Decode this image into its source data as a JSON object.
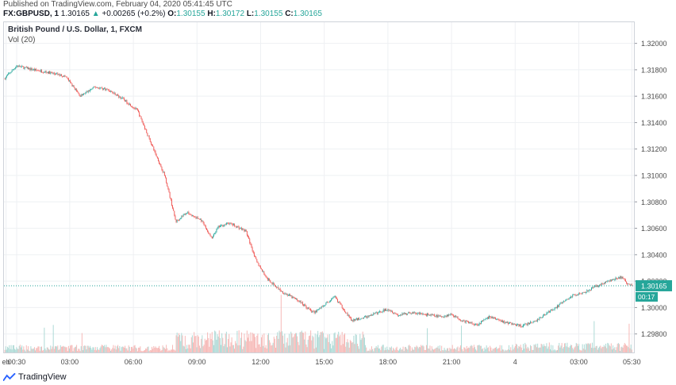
{
  "publish_line": "Published on TradingView.com, February 04, 2020 05:41:45 UTC",
  "quote": {
    "symbol": "FX:GBPUSD, 1",
    "last": "1.30165",
    "change_arrow": "▲",
    "change": "+0.00265 (+0.2%)",
    "open_label": "O:",
    "open": "1.30155",
    "high_label": "H:",
    "high": "1.30172",
    "low_label": "L:",
    "low": "1.30155",
    "close_label": "C:",
    "close": "1.30165"
  },
  "legend": {
    "title": "British Pound / U.S. Dollar, 1, FXCM",
    "volume": "Vol (20)"
  },
  "price_badge": {
    "value": "1.30165",
    "countdown": "00:17"
  },
  "footer": {
    "brand": "TradingView"
  },
  "colors": {
    "up": "#26a69a",
    "down": "#ef5350",
    "grid": "#eef0f3",
    "badge": "#26a69a"
  },
  "chart_data": {
    "type": "candlestick",
    "title": "British Pound / U.S. Dollar, 1, FXCM",
    "symbol": "FX:GBPUSD",
    "interval": "1 minute",
    "y_axis": {
      "ticks": [
        "1.32000",
        "1.31800",
        "1.31600",
        "1.31400",
        "1.31200",
        "1.31000",
        "1.30800",
        "1.30600",
        "1.30400",
        "1.30200",
        "1.30000",
        "1.29800"
      ],
      "ylim": [
        1.2966,
        1.3216
      ],
      "position": "right"
    },
    "x_axis": {
      "ticks": [
        "eb",
        "00:30",
        "03:00",
        "06:00",
        "09:00",
        "12:00",
        "15:00",
        "18:00",
        "21:00",
        "4",
        "03:00",
        "05:30"
      ],
      "tick_hours": [
        0,
        0.5,
        3,
        6,
        9,
        12,
        15,
        18,
        21,
        24,
        27,
        29.5
      ],
      "xlim": [
        -0.1,
        29.6
      ]
    },
    "price_path": {
      "hours": [
        -0.1,
        0.5,
        1.0,
        2.0,
        2.8,
        3.5,
        4.2,
        4.8,
        5.5,
        6.2,
        7.0,
        7.5,
        8.0,
        8.5,
        9.2,
        9.7,
        10.0,
        10.5,
        11.3,
        11.8,
        12.3,
        13.0,
        13.8,
        14.5,
        15.0,
        15.5,
        16.3,
        17.0,
        17.5,
        18.0,
        18.5,
        19.0,
        19.7,
        20.5,
        21.0,
        21.5,
        22.2,
        22.8,
        23.5,
        24.3,
        25.0,
        25.5,
        26.0,
        26.7,
        27.3,
        27.8,
        28.4,
        29.0,
        29.3,
        29.5
      ],
      "prices": [
        1.3173,
        1.3183,
        1.3181,
        1.3178,
        1.3175,
        1.316,
        1.3167,
        1.3165,
        1.3158,
        1.3149,
        1.3118,
        1.3099,
        1.3065,
        1.3072,
        1.3066,
        1.3052,
        1.3061,
        1.3064,
        1.3058,
        1.3035,
        1.3022,
        1.3012,
        1.3005,
        1.2996,
        1.3002,
        1.3008,
        1.299,
        1.2993,
        1.2996,
        1.2999,
        1.2994,
        1.2996,
        1.2995,
        1.2993,
        1.2995,
        1.299,
        1.2987,
        1.2993,
        1.2989,
        1.2986,
        1.299,
        1.2996,
        1.3001,
        1.3009,
        1.3012,
        1.3016,
        1.302,
        1.3023,
        1.3018,
        1.30165
      ]
    },
    "last_price": 1.30165,
    "volume": {
      "label": "Vol (20)",
      "baseline": "bottom"
    }
  }
}
